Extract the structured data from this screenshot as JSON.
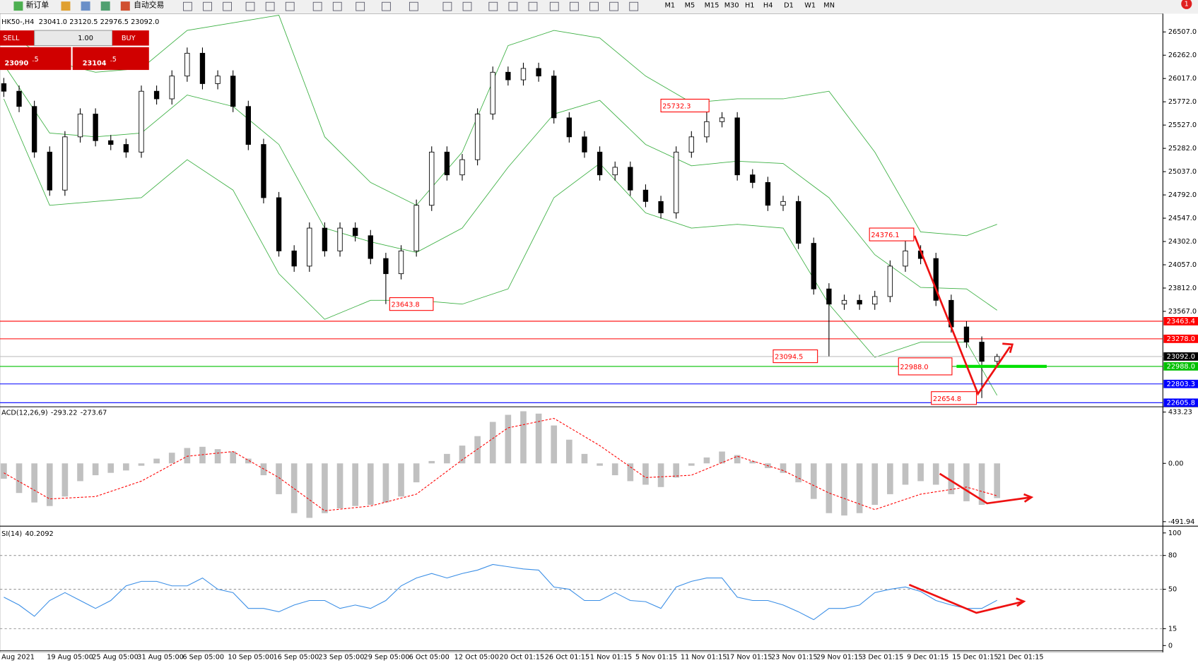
{
  "toolbar": {
    "new_order": "新订单",
    "auto_trading": "自动交易",
    "timeframes": [
      "M1",
      "M5",
      "M15",
      "M30",
      "H1",
      "H4",
      "D1",
      "W1",
      "MN"
    ],
    "badge": "1"
  },
  "trade_panel": {
    "sell": "SELL",
    "buy": "BUY",
    "lots": "1.00",
    "bid_main": "23090",
    "bid_big": ".5",
    "ask_main": "23104",
    "ask_big": ".5"
  },
  "chart_data": [
    {
      "type": "candlestick",
      "symbol": "HK50-,H4",
      "ylim": [
        22579,
        26683
      ],
      "xlim": [
        -0.25,
        75.85
      ],
      "yticks": [
        {
          "value": 26507,
          "label": "26507.0"
        },
        {
          "value": 26262,
          "label": "26262.0"
        },
        {
          "value": 26017,
          "label": "26017.0"
        },
        {
          "value": 25772,
          "label": "25772.0"
        },
        {
          "value": 25527,
          "label": "25527.0"
        },
        {
          "value": 25282,
          "label": "25282.0"
        },
        {
          "value": 25037,
          "label": "25037.0"
        },
        {
          "value": 24792,
          "label": "24792.0"
        },
        {
          "value": 24547,
          "label": "24547.0"
        },
        {
          "value": 24302,
          "label": "24302.0"
        },
        {
          "value": 24057,
          "label": "24057.0"
        },
        {
          "value": 23812,
          "label": "23812.0"
        },
        {
          "value": 23567,
          "label": "23567.0"
        }
      ],
      "candles": [
        [
          25963,
          26023,
          25823,
          25883
        ],
        [
          25883,
          25943,
          25663,
          25723
        ],
        [
          25723,
          25783,
          25183,
          25243
        ],
        [
          25243,
          25303,
          24783,
          24843
        ],
        [
          24843,
          25463,
          24783,
          25403
        ],
        [
          25403,
          25703,
          25343,
          25643
        ],
        [
          25643,
          25703,
          25303,
          25363
        ],
        [
          25363,
          25423,
          25263,
          25323
        ],
        [
          25323,
          25383,
          25183,
          25243
        ],
        [
          25243,
          25943,
          25183,
          25883
        ],
        [
          25883,
          25943,
          25743,
          25803
        ],
        [
          25803,
          26103,
          25743,
          26043
        ],
        [
          26043,
          26343,
          25983,
          26283
        ],
        [
          26283,
          26343,
          25903,
          25963
        ],
        [
          25963,
          26103,
          25903,
          26043
        ],
        [
          26043,
          26103,
          25663,
          25723
        ],
        [
          25723,
          25783,
          25263,
          25323
        ],
        [
          25323,
          25383,
          24703,
          24763
        ],
        [
          24763,
          24823,
          24143,
          24203
        ],
        [
          24203,
          24263,
          23983,
          24043
        ],
        [
          24043,
          24503,
          23983,
          24443
        ],
        [
          24443,
          24503,
          24143,
          24203
        ],
        [
          24203,
          24503,
          24143,
          24443
        ],
        [
          24443,
          24503,
          24303,
          24363
        ],
        [
          24363,
          24423,
          24063,
          24123
        ],
        [
          24123,
          24183,
          23643.8,
          23963
        ],
        [
          23963,
          24263,
          23903,
          24203
        ],
        [
          24203,
          24743,
          24143,
          24683
        ],
        [
          24683,
          25303,
          24623,
          25243
        ],
        [
          25243,
          25303,
          24943,
          25003
        ],
        [
          25003,
          25223,
          24943,
          25163
        ],
        [
          25163,
          25703,
          25103,
          25643
        ],
        [
          25643,
          26143,
          25583,
          26083
        ],
        [
          26083,
          26143,
          25943,
          26003
        ],
        [
          26003,
          26183,
          25943,
          26123
        ],
        [
          26123,
          26183,
          25983,
          26043
        ],
        [
          26043,
          26103,
          25543,
          25603
        ],
        [
          25603,
          25663,
          25343,
          25403
        ],
        [
          25403,
          25463,
          25183,
          25243
        ],
        [
          25243,
          25303,
          24943,
          25003
        ],
        [
          25003,
          25143,
          24943,
          25083
        ],
        [
          25083,
          25143,
          24783,
          24843
        ],
        [
          24843,
          24903,
          24663,
          24723
        ],
        [
          24723,
          24783,
          24543,
          24603
        ],
        [
          24603,
          25303,
          24543,
          25243
        ],
        [
          25243,
          25463,
          25183,
          25403
        ],
        [
          25403,
          25732.3,
          25343,
          25563
        ],
        [
          25563,
          25663,
          25503,
          25603
        ],
        [
          25603,
          25663,
          24943,
          25003
        ],
        [
          25003,
          25063,
          24863,
          24923
        ],
        [
          24923,
          24983,
          24623,
          24683
        ],
        [
          24683,
          24783,
          24623,
          24723
        ],
        [
          24723,
          24783,
          24223,
          24283
        ],
        [
          24283,
          24343,
          23743,
          23803
        ],
        [
          23803,
          23863,
          23094.5,
          23643
        ],
        [
          23643,
          23743,
          23583,
          23683
        ],
        [
          23683,
          23743,
          23583,
          23643
        ],
        [
          23643,
          23783,
          23583,
          23723
        ],
        [
          23723,
          24103,
          23663,
          24043
        ],
        [
          24043,
          24376.1,
          23983,
          24203
        ],
        [
          24203,
          24263,
          24063,
          24123
        ],
        [
          24123,
          24183,
          23623,
          23683
        ],
        [
          23683,
          23743,
          23343,
          23403
        ],
        [
          23403,
          23463,
          23183,
          23243
        ],
        [
          23243,
          23303,
          22654.8,
          23041
        ],
        [
          23041,
          23120.5,
          22976.5,
          23092
        ]
      ],
      "last_bar_labels": [
        "23041.0",
        "23120.5",
        "22976.5",
        "23092.0"
      ],
      "bands": {
        "color": "#3cb043",
        "x": [
          0,
          3,
          6,
          9,
          12,
          15,
          18,
          21,
          24,
          27,
          30,
          33,
          36,
          39,
          42,
          45,
          48,
          51,
          54,
          57,
          60,
          63,
          65
        ],
        "upper": [
          26523,
          26203,
          26083,
          26123,
          26523,
          26603,
          26683,
          25403,
          24923,
          24683,
          25243,
          26363,
          26523,
          26443,
          26043,
          25763,
          25803,
          25803,
          25883,
          25243,
          24403,
          24363,
          24483
        ],
        "middle": [
          26163,
          25443,
          25403,
          25443,
          25843,
          25723,
          25323,
          24443,
          24299,
          24187,
          24443,
          25083,
          25643,
          25787,
          25323,
          25099,
          25147,
          25123,
          24763,
          24163,
          23819,
          23803,
          23579
        ],
        "lower": [
          25803,
          24683,
          24723,
          24763,
          25163,
          24843,
          23963,
          23483,
          23683,
          23683,
          23643,
          23803,
          24763,
          25123,
          24603,
          24443,
          24483,
          24443,
          23643,
          23083,
          23243,
          23243,
          22683
        ]
      },
      "levels": [
        {
          "value": 23463.4,
          "color": "#ff0000",
          "label_color": "#ff0000"
        },
        {
          "value": 23278,
          "label": "23278.0",
          "color": "#ff0000",
          "label_color": "#ff0000"
        },
        {
          "value": 23092,
          "label": "23092.0",
          "color": "#c0c0c0",
          "label_color": "#000000"
        },
        {
          "value": 22988,
          "label": "22988.0",
          "color": "#00c000",
          "label_color": "#00c000"
        },
        {
          "value": 22803.3,
          "color": "#0000ff",
          "label_color": "#0000ff"
        },
        {
          "value": 22605.8,
          "color": "#0000ff",
          "label_color": "#0000ff"
        }
      ],
      "annotations": [
        {
          "value": 25732.3
        },
        {
          "value": 23643.8
        },
        {
          "value": 23094.5
        },
        {
          "value": 24376.1
        },
        {
          "value": 22988,
          "label": "22988.0"
        },
        {
          "value": 22654.8
        }
      ],
      "time_labels": [
        "Aug 2021",
        "19 Aug 05:00",
        "25 Aug 05:00",
        "31 Aug 05:00",
        "6 Sep 05:00",
        "10 Sep 05:00",
        "16 Sep 05:00",
        "23 Sep 05:00",
        "29 Sep 05:00",
        "6 Oct 05:00",
        "12 Oct 05:00",
        "20 Oct 01:15",
        "26 Oct 01:15",
        "1 Nov 01:15",
        "5 Nov 01:15",
        "11 Nov 01:15",
        "17 Nov 01:15",
        "23 Nov 01:15",
        "29 Nov 01:15",
        "3 Dec 01:15",
        "9 Dec 01:15",
        "15 Dec 01:15",
        "21 Dec 01:15"
      ]
    },
    {
      "type": "macd",
      "title": "ACD(12,26,9)",
      "ylim": [
        -517,
        465
      ],
      "yticks": [
        433.23,
        {
          "value": 0,
          "label": "0.00"
        },
        -491.94
      ],
      "color": "#c0c0c0",
      "values": [
        -130,
        -250,
        -330,
        -360,
        -280,
        -150,
        -100,
        -80,
        -60,
        -20,
        40,
        90,
        130,
        140,
        120,
        100,
        40,
        -100,
        -260,
        -420,
        -460,
        -420,
        -380,
        -360,
        -350,
        -330,
        -280,
        -160,
        20,
        80,
        150,
        230,
        350,
        410,
        440,
        420,
        320,
        200,
        80,
        -20,
        -100,
        -150,
        -180,
        -200,
        -120,
        -20,
        50,
        100,
        70,
        20,
        -40,
        -80,
        -160,
        -300,
        -420,
        -440,
        -420,
        -350,
        -260,
        -180,
        -150,
        -180,
        -260,
        -320,
        -350,
        -293.22
      ],
      "signal": {
        "color": "#ff0000",
        "x": [
          0,
          3,
          6,
          9,
          12,
          15,
          18,
          21,
          24,
          27,
          30,
          33,
          36,
          39,
          42,
          45,
          48,
          51,
          54,
          57,
          60,
          63,
          65
        ],
        "values": [
          -80,
          -300,
          -280,
          -150,
          60,
          100,
          -120,
          -400,
          -360,
          -260,
          30,
          300,
          380,
          150,
          -120,
          -100,
          60,
          -60,
          -250,
          -390,
          -260,
          -200,
          -273.67
        ]
      }
    },
    {
      "type": "rsi",
      "title": "SI(14)",
      "ylim": [
        -4,
        104
      ],
      "yticks": [
        100,
        80,
        50,
        15,
        0
      ],
      "color": "#3a8ee6",
      "values": [
        43,
        36,
        26,
        40,
        47,
        40,
        33,
        40,
        53,
        57,
        57,
        53,
        53,
        60,
        50,
        47,
        33,
        33,
        30,
        36,
        40,
        40,
        33,
        36,
        33,
        40,
        53,
        60,
        64,
        60,
        64,
        67,
        72,
        70,
        68,
        67,
        52,
        50,
        40,
        40,
        47,
        40,
        39,
        33,
        52,
        57,
        60,
        60,
        43,
        40,
        40,
        36,
        30,
        23,
        33,
        33,
        36,
        47,
        50,
        52,
        48,
        40,
        36,
        33,
        33,
        40.2092
      ]
    }
  ]
}
